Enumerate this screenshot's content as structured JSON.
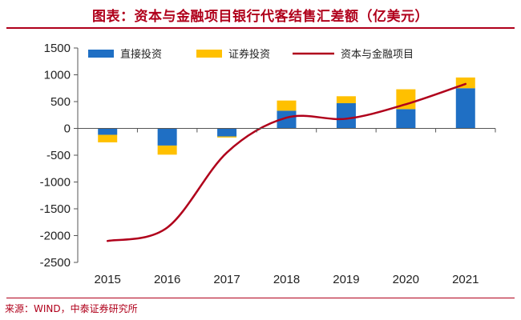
{
  "header": {
    "title": "图表：资本与金融项目银行代客结售汇差额（亿美元）"
  },
  "footer": {
    "source": "来源：WIND，中泰证券研究所"
  },
  "colors": {
    "direct": "#1f6fc4",
    "securities": "#ffc000",
    "line": "#b0001b",
    "accent": "#b0001b"
  },
  "chart_data": {
    "type": "bar",
    "stacked": true,
    "title": "资本与金融项目银行代客结售汇差额（亿美元）",
    "categories": [
      "2015",
      "2016",
      "2017",
      "2018",
      "2019",
      "2020",
      "2021"
    ],
    "ylim": [
      -2500,
      1500
    ],
    "yticks": [
      1500,
      1000,
      500,
      0,
      -500,
      -1000,
      -1500,
      -2000,
      -2500
    ],
    "ytick_labels": [
      "1500",
      "1000",
      "500",
      "0",
      "-500",
      "-1000",
      "-1500",
      "-2000",
      "-2500"
    ],
    "legend_position": "top",
    "series": [
      {
        "name": "直接投资",
        "type": "bar",
        "values": [
          -120,
          -320,
          -150,
          330,
          470,
          360,
          750
        ]
      },
      {
        "name": "证券投资",
        "type": "bar",
        "values": [
          -140,
          -170,
          -20,
          190,
          130,
          370,
          200
        ]
      },
      {
        "name": "资本与金融项目",
        "type": "line",
        "values": [
          -2100,
          -1850,
          -450,
          200,
          180,
          450,
          830
        ]
      }
    ]
  }
}
